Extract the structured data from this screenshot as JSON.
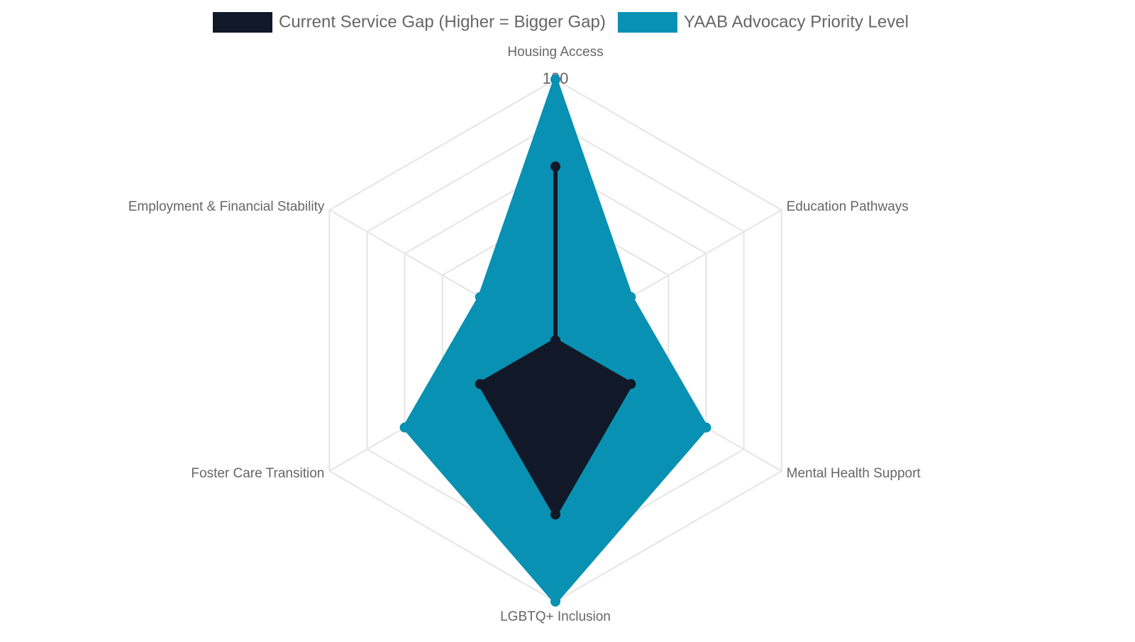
{
  "chart_data": {
    "type": "radar",
    "categories": [
      "Housing Access",
      "Education Pathways",
      "Mental Health Support",
      "LGBTQ+ Inclusion",
      "Foster Care Transition",
      "Employment & Financial Stability"
    ],
    "series": [
      {
        "name": "Current Service Gap (Higher = Bigger Gap)",
        "color": "#111827",
        "values": [
          80,
          40,
          60,
          80,
          60,
          40
        ]
      },
      {
        "name": "YAAB Advocacy Priority Level",
        "color": "#0891b2",
        "values": [
          100,
          60,
          80,
          100,
          80,
          60
        ]
      }
    ],
    "ylim": [
      40,
      100
    ],
    "yticks": [
      70,
      80,
      90,
      100
    ],
    "grid": true
  }
}
